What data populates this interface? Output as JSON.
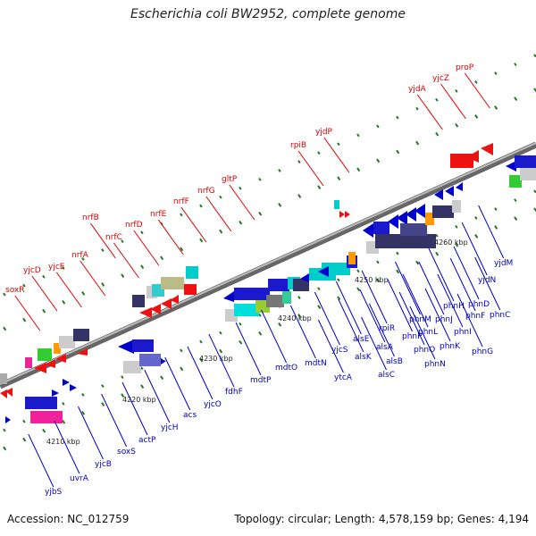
{
  "title": "Escherichia coli BW2952, complete genome",
  "footer": {
    "accession": "Accession: NC_012759",
    "summary": "Topology: circular; Length: 4,578,159 bp; Genes: 4,194"
  },
  "colors": {
    "forward_label": "#dd0000",
    "reverse_label": "#0000cc",
    "backbone": "#888888",
    "tick": "#227722"
  },
  "kbp_ticks": [
    "4210 kbp",
    "4220 kbp",
    "4230 kbp",
    "4240 kbp",
    "4250 kbp",
    "4260 kbp"
  ],
  "labels_forward": [
    "soxR",
    "yjcD",
    "yjcE",
    "nrfA",
    "nrfB",
    "nrfC",
    "nrfD",
    "nrfE",
    "nrfF",
    "nrfG",
    "gltP",
    "rpiB",
    "yjdP",
    "yjdA",
    "yjcZ",
    "proP"
  ],
  "labels_reverse": [
    "yjbS",
    "uvrA",
    "yjcB",
    "soxS",
    "actP",
    "yjcH",
    "acs",
    "yjcO",
    "fdhF",
    "mdtP",
    "mdtO",
    "mdtN",
    "ytcA",
    "yjcS",
    "alsE",
    "alsK",
    "alsC",
    "alsB",
    "alsA",
    "rpiR",
    "phnP",
    "phnM",
    "phnN",
    "phnO",
    "phnL",
    "phnJ",
    "phnK",
    "phnI",
    "phnH",
    "phnF",
    "phnD",
    "phnG",
    "phnC",
    "yjdN",
    "yjdM"
  ]
}
